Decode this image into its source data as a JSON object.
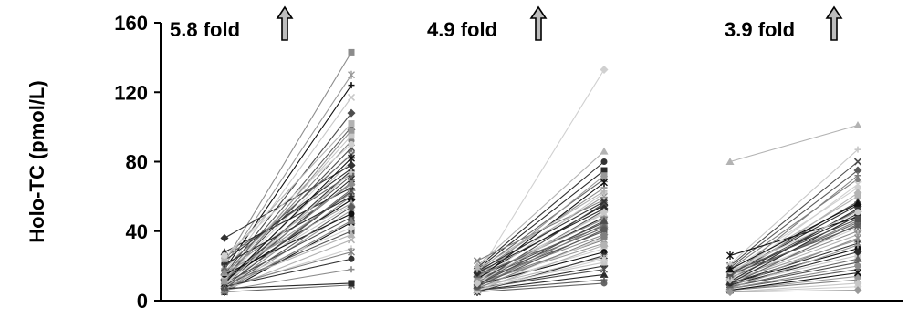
{
  "chart_data": {
    "type": "line",
    "ylabel": "Holo-TC (pmol/L)",
    "ylim": [
      0,
      160
    ],
    "yticks": [
      0,
      40,
      80,
      120,
      160
    ],
    "grid": false,
    "legend": "none",
    "annotations": [
      {
        "label": "5.8 fold",
        "icon": "up-arrow-icon"
      },
      {
        "label": "4.9 fold",
        "icon": "up-arrow-icon"
      },
      {
        "label": "3.9 fold",
        "icon": "up-arrow-icon"
      }
    ],
    "groups": [
      {
        "pairs": [
          [
            5,
            45
          ],
          [
            6,
            52
          ],
          [
            7,
            60
          ],
          [
            8,
            64
          ],
          [
            9,
            70
          ],
          [
            10,
            75
          ],
          [
            11,
            80
          ],
          [
            12,
            85
          ],
          [
            13,
            92
          ],
          [
            14,
            100
          ],
          [
            15,
            108
          ],
          [
            16,
            117
          ],
          [
            18,
            124
          ],
          [
            20,
            130
          ],
          [
            22,
            143
          ],
          [
            25,
            73
          ],
          [
            28,
            65
          ],
          [
            36,
            78
          ],
          [
            6,
            35
          ],
          [
            7,
            30
          ],
          [
            8,
            28
          ],
          [
            9,
            40
          ],
          [
            10,
            48
          ],
          [
            11,
            55
          ],
          [
            12,
            58
          ],
          [
            13,
            62
          ],
          [
            6,
            18
          ],
          [
            5,
            9
          ],
          [
            7,
            10
          ],
          [
            8,
            24
          ],
          [
            9,
            38
          ],
          [
            10,
            42
          ],
          [
            11,
            68
          ],
          [
            12,
            72
          ],
          [
            13,
            88
          ],
          [
            14,
            95
          ],
          [
            15,
            50
          ],
          [
            16,
            56
          ],
          [
            17,
            67
          ],
          [
            19,
            84
          ],
          [
            21,
            60
          ],
          [
            23,
            76
          ],
          [
            24,
            102
          ],
          [
            26,
            90
          ],
          [
            6,
            46
          ],
          [
            7,
            54
          ],
          [
            8,
            63
          ],
          [
            9,
            74
          ],
          [
            10,
            82
          ],
          [
            11,
            98
          ]
        ]
      },
      {
        "pairs": [
          [
            5,
            10
          ],
          [
            6,
            15
          ],
          [
            7,
            20
          ],
          [
            8,
            25
          ],
          [
            9,
            30
          ],
          [
            10,
            35
          ],
          [
            11,
            40
          ],
          [
            12,
            45
          ],
          [
            13,
            50
          ],
          [
            14,
            55
          ],
          [
            15,
            60
          ],
          [
            16,
            65
          ],
          [
            17,
            70
          ],
          [
            18,
            75
          ],
          [
            19,
            80
          ],
          [
            20,
            86
          ],
          [
            15,
            133
          ],
          [
            23,
            58
          ],
          [
            6,
            12
          ],
          [
            7,
            18
          ],
          [
            8,
            22
          ],
          [
            9,
            28
          ],
          [
            10,
            33
          ],
          [
            11,
            38
          ],
          [
            12,
            42
          ],
          [
            13,
            48
          ],
          [
            5,
            26
          ],
          [
            6,
            32
          ],
          [
            7,
            36
          ],
          [
            8,
            44
          ],
          [
            9,
            52
          ],
          [
            10,
            56
          ],
          [
            11,
            62
          ],
          [
            12,
            68
          ],
          [
            13,
            72
          ],
          [
            14,
            47
          ],
          [
            15,
            43
          ],
          [
            16,
            53
          ],
          [
            17,
            57
          ],
          [
            18,
            63
          ],
          [
            6,
            24
          ],
          [
            7,
            37
          ],
          [
            8,
            41
          ],
          [
            9,
            46
          ],
          [
            10,
            51
          ]
        ]
      },
      {
        "pairs": [
          [
            80,
            101
          ],
          [
            5,
            8
          ],
          [
            6,
            12
          ],
          [
            7,
            18
          ],
          [
            8,
            22
          ],
          [
            9,
            26
          ],
          [
            10,
            30
          ],
          [
            11,
            35
          ],
          [
            12,
            40
          ],
          [
            13,
            45
          ],
          [
            14,
            50
          ],
          [
            15,
            55
          ],
          [
            16,
            60
          ],
          [
            17,
            65
          ],
          [
            18,
            70
          ],
          [
            19,
            75
          ],
          [
            20,
            80
          ],
          [
            21,
            87
          ],
          [
            26,
            48
          ],
          [
            6,
            14
          ],
          [
            7,
            20
          ],
          [
            8,
            24
          ],
          [
            9,
            28
          ],
          [
            10,
            33
          ],
          [
            11,
            38
          ],
          [
            12,
            42
          ],
          [
            13,
            46
          ],
          [
            14,
            52
          ],
          [
            15,
            57
          ],
          [
            5,
            10
          ],
          [
            6,
            16
          ],
          [
            7,
            32
          ],
          [
            8,
            36
          ],
          [
            9,
            44
          ],
          [
            10,
            49
          ],
          [
            11,
            53
          ],
          [
            12,
            62
          ],
          [
            13,
            67
          ],
          [
            14,
            72
          ],
          [
            15,
            43
          ],
          [
            16,
            47
          ],
          [
            17,
            51
          ],
          [
            18,
            56
          ],
          [
            5,
            6
          ]
        ]
      }
    ]
  }
}
